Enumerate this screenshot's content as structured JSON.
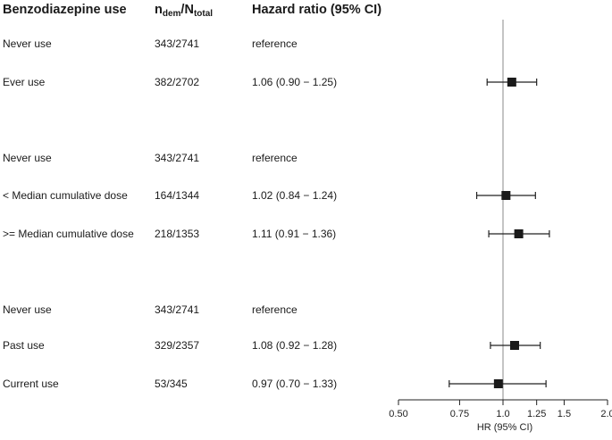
{
  "header": {
    "col1": "Benzodiazepine use",
    "col2_n": "n",
    "col2_n_sub": "dem",
    "col2_slash": "/",
    "col2_N": "N",
    "col2_N_sub": "total",
    "col3": "Hazard ratio (95% CI)"
  },
  "rows": [
    {
      "label": "Never use",
      "counts": "343/2741",
      "hr_text": "reference"
    },
    {
      "label": "Ever use",
      "counts": "382/2702",
      "hr_text": "1.06 (0.90 − 1.25)"
    },
    {
      "label": "Never use",
      "counts": "343/2741",
      "hr_text": "reference"
    },
    {
      "label": "< Median cumulative dose",
      "counts": "164/1344",
      "hr_text": "1.02 (0.84 − 1.24)"
    },
    {
      "label": ">= Median cumulative dose",
      "counts": "218/1353",
      "hr_text": "1.11 (0.91 − 1.36)"
    },
    {
      "label": "Never use",
      "counts": "343/2741",
      "hr_text": "reference"
    },
    {
      "label": "Past use",
      "counts": "329/2357",
      "hr_text": "1.08 (0.92 − 1.28)"
    },
    {
      "label": "Current use",
      "counts": "53/345",
      "hr_text": "0.97 (0.70 − 1.33)"
    }
  ],
  "chart_data": {
    "type": "forest",
    "xlabel": "HR (95% CI)",
    "scale": "log",
    "xlim": [
      0.5,
      2.0
    ],
    "ticks": [
      0.5,
      0.75,
      1.0,
      1.25,
      1.5,
      2.0
    ],
    "tick_labels": [
      "0.50",
      "0.75",
      "1.0",
      "1.25",
      "1.5",
      "2.0"
    ],
    "reference_line": 1.0,
    "estimates": [
      {
        "row": 1,
        "hr": 1.06,
        "lower": 0.9,
        "upper": 1.25
      },
      {
        "row": 3,
        "hr": 1.02,
        "lower": 0.84,
        "upper": 1.24
      },
      {
        "row": 4,
        "hr": 1.11,
        "lower": 0.91,
        "upper": 1.36
      },
      {
        "row": 6,
        "hr": 1.08,
        "lower": 0.92,
        "upper": 1.28
      },
      {
        "row": 7,
        "hr": 0.97,
        "lower": 0.7,
        "upper": 1.33
      }
    ]
  }
}
